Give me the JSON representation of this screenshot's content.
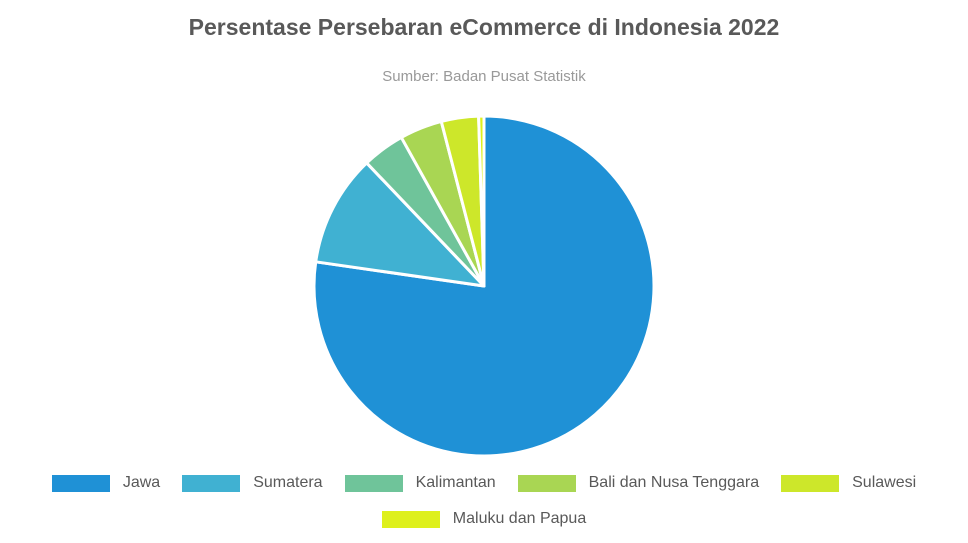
{
  "chart_data": {
    "type": "pie",
    "title": "Persentase Persebaran eCommerce di Indonesia 2022",
    "subtitle": "Sumber: Badan Pusat Statistik",
    "legend_position": "bottom",
    "slices": [
      {
        "label": "Jawa",
        "value": 76.5,
        "color": "#1f91d6"
      },
      {
        "label": "Sumatera",
        "value": 10.5,
        "color": "#40b1d2"
      },
      {
        "label": "Kalimantan",
        "value": 4.0,
        "color": "#6fc49a"
      },
      {
        "label": "Bali dan Nusa Tenggara",
        "value": 4.0,
        "color": "#a9d653"
      },
      {
        "label": "Sulawesi",
        "value": 3.5,
        "color": "#cde72a"
      },
      {
        "label": "Maluku dan Papua",
        "value": 0.5,
        "color": "#def01c"
      }
    ]
  }
}
